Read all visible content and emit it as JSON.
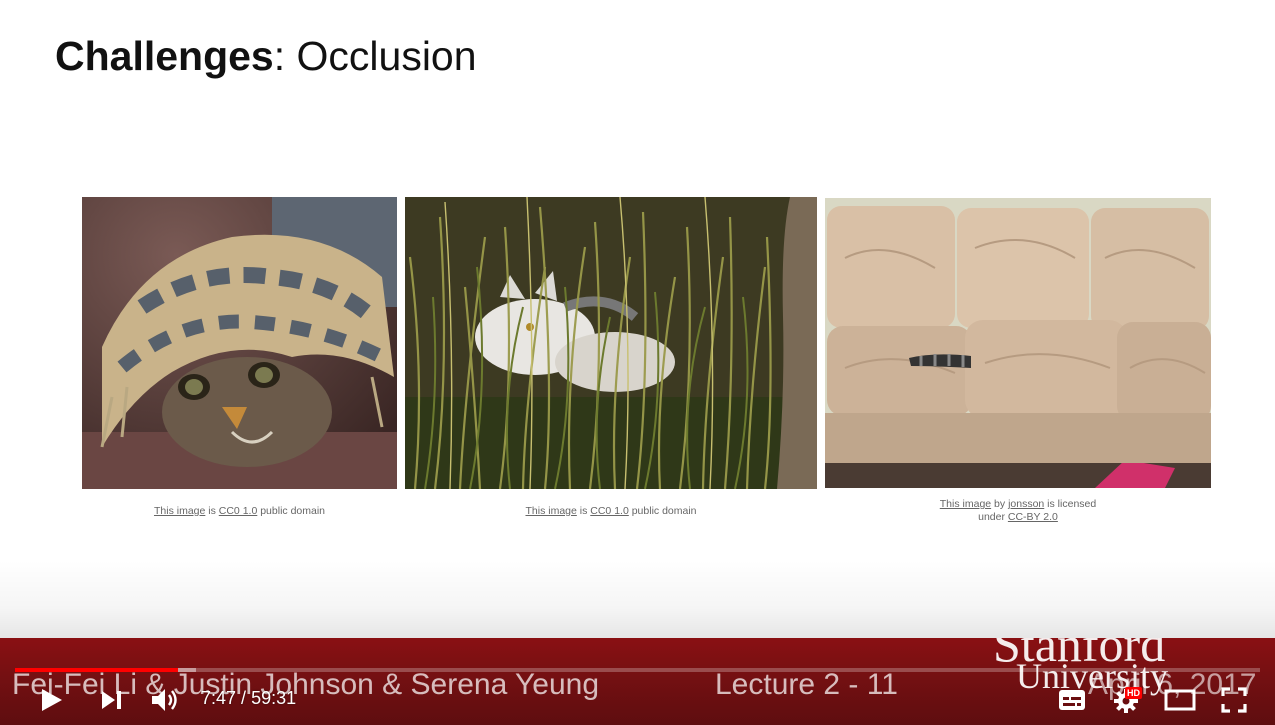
{
  "slide": {
    "title_bold": "Challenges",
    "title_rest": ": Occlusion",
    "photos": [
      {
        "subject": "kitten under blanket",
        "credit_link1": "This image",
        "credit_mid": " is ",
        "credit_link2": "CC0 1.0",
        "credit_end": " public domain"
      },
      {
        "subject": "cat in tall grass",
        "credit_link1": "This image",
        "credit_mid": " is ",
        "credit_link2": "CC0 1.0",
        "credit_end": " public domain"
      },
      {
        "subject": "cat tail under sofa cushion",
        "credit_link1": "This image",
        "credit_mid": " by ",
        "credit_link2": "jonsson",
        "credit_end": " is licensed",
        "credit_line2_pre": "under ",
        "credit_line2_link": "CC-BY 2.0"
      }
    ]
  },
  "footer": {
    "names": "Fei-Fei Li & Justin Johnson & Serena Yeung",
    "lecture": "Lecture 2 -   11",
    "date": "April 6, 2017",
    "logo_line1": "Stanford",
    "logo_line2": "University"
  },
  "player": {
    "current_time": "7:47",
    "separator": " / ",
    "duration": "59:31",
    "time_display": "7:47 / 59:31",
    "played_fraction": 0.131,
    "buffered_fraction": 0.145,
    "hd_badge": "HD",
    "icons": [
      "play-icon",
      "next-icon",
      "volume-icon",
      "subtitles-icon",
      "settings-icon",
      "theater-mode-icon",
      "fullscreen-icon"
    ],
    "accent_color": "#ff0000",
    "footer_color": "#7a1012"
  }
}
